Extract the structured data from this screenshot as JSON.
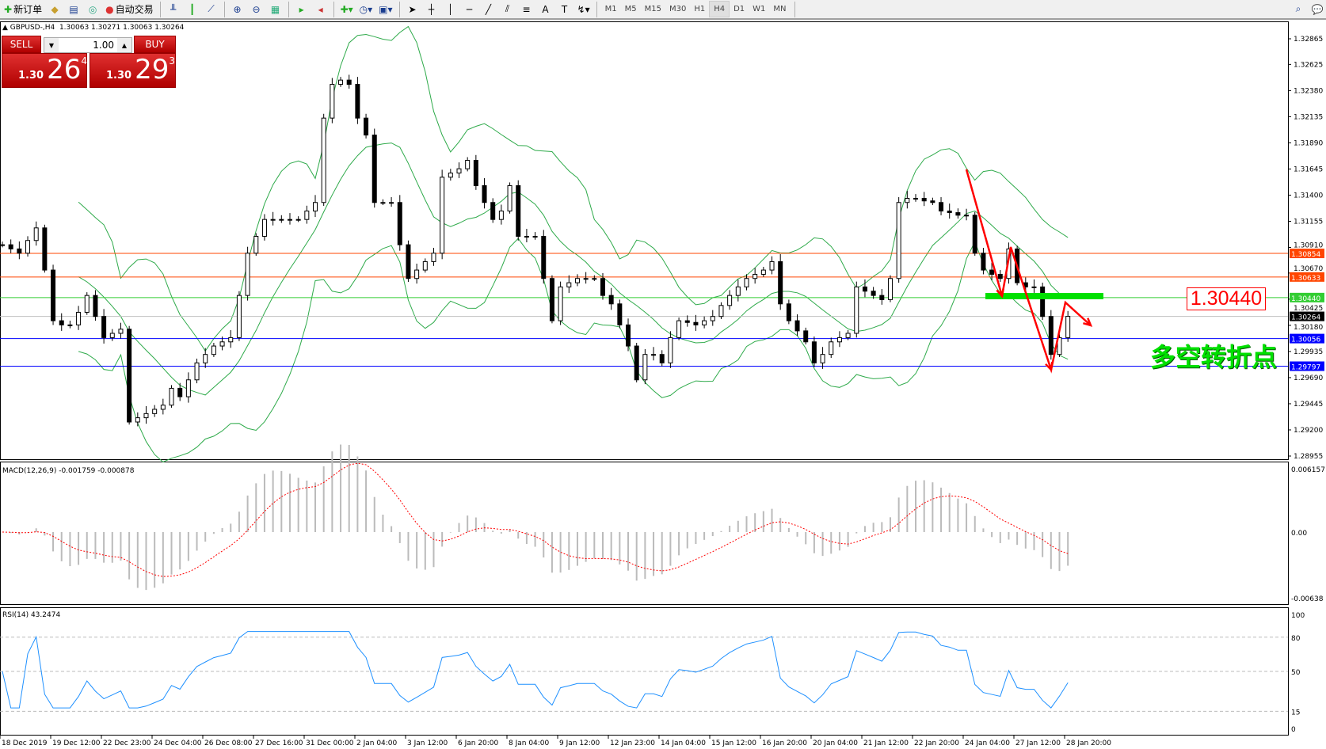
{
  "toolbar": {
    "new_order": "新订单",
    "auto_trading": "自动交易",
    "timeframes": [
      "M1",
      "M5",
      "M15",
      "M30",
      "H1",
      "H4",
      "D1",
      "W1",
      "MN"
    ],
    "active_timeframe": "H4"
  },
  "header": {
    "title": "GBPUSD-,H4",
    "ohlc": "1.30063 1.30271 1.30063 1.30264"
  },
  "one_click": {
    "sell_label": "SELL",
    "buy_label": "BUY",
    "lot": "1.00",
    "sell_prefix": "1.30",
    "sell_big": "26",
    "sell_sup": "4",
    "buy_prefix": "1.30",
    "buy_big": "29",
    "buy_sup": "3"
  },
  "annotations": {
    "level_label": "1.30440",
    "chinese_text": "多空转折点",
    "arrow_color": "#ff0000",
    "zone_color": "#00e000"
  },
  "chart_data": {
    "type": "candlestick",
    "symbol": "GBPUSD-",
    "timeframe": "H4",
    "price_axis": {
      "ylim": [
        1.28955,
        1.32865
      ],
      "ticks": [
        "1.32865",
        "1.32625",
        "1.32380",
        "1.32135",
        "1.31890",
        "1.31645",
        "1.31400",
        "1.31155",
        "1.30910",
        "1.30670",
        "1.30425",
        "1.30180",
        "1.29935",
        "1.29690",
        "1.29445",
        "1.29200",
        "1.28955"
      ]
    },
    "closes": [
      1.30935,
      1.30896,
      1.30856,
      1.30975,
      1.31093,
      1.30698,
      1.30223,
      1.30184,
      1.30184,
      1.30302,
      1.3046,
      1.30263,
      1.30065,
      1.30105,
      1.30144,
      1.29274,
      1.29314,
      1.29353,
      1.29393,
      1.29432,
      1.2959,
      1.29511,
      1.29669,
      1.29828,
      1.29907,
      1.29986,
      1.30025,
      1.30065,
      1.3046,
      1.30856,
      1.31014,
      1.31172,
      1.31172,
      1.31172,
      1.31172,
      1.31172,
      1.31251,
      1.31331,
      1.32122,
      1.32438,
      1.32478,
      1.32438,
      1.32122,
      1.31963,
      1.31331,
      1.31331,
      1.31331,
      1.30935,
      1.30619,
      1.30698,
      1.30777,
      1.30856,
      1.31568,
      1.31607,
      1.31647,
      1.31726,
      1.31489,
      1.31331,
      1.31172,
      1.31251,
      1.31489,
      1.31014,
      1.31014,
      1.31014,
      1.30619,
      1.30223,
      1.3054,
      1.30579,
      1.30619,
      1.30619,
      1.30619,
      1.3046,
      1.30381,
      1.30184,
      1.29986,
      1.29669,
      1.29907,
      1.29907,
      1.29828,
      1.30065,
      1.30223,
      1.30207,
      1.30184,
      1.30223,
      1.30263,
      1.30366,
      1.3046,
      1.3054,
      1.30619,
      1.30658,
      1.30698,
      1.30777,
      1.30381,
      1.30223,
      1.30128,
      1.30025,
      1.29828,
      1.29907,
      1.30025,
      1.30065,
      1.30105,
      1.3054,
      1.305,
      1.3046,
      1.30421,
      1.30619,
      1.31331,
      1.3137,
      1.3137,
      1.31346,
      1.31331,
      1.31251,
      1.31236,
      1.31212,
      1.31212,
      1.30856,
      1.30698,
      1.30658,
      1.30619,
      1.30896,
      1.30579,
      1.3054,
      1.3054,
      1.30263,
      1.29907,
      1.30065,
      1.30264
    ],
    "hlines": [
      {
        "price": 1.30854,
        "label": "1.30854",
        "color": "#ff4500"
      },
      {
        "price": 1.30633,
        "label": "1.30633",
        "color": "#ff4500"
      },
      {
        "price": 1.3044,
        "label": "1.30440",
        "color": "#32cd32"
      },
      {
        "price": 1.30264,
        "label": "1.30264",
        "color": "#000000",
        "line": "#c0c0c0"
      },
      {
        "price": 1.30056,
        "label": "1.30056",
        "color": "#0000ff"
      },
      {
        "price": 1.29797,
        "label": "1.29797",
        "color": "#0000ff"
      }
    ],
    "indicator_band_color": "#2eaa4a",
    "macd": {
      "label": "MACD(12,26,9) -0.001759 -0.000878",
      "ylim": [
        -0.00638,
        0.006157
      ],
      "ticks": [
        "0.006157",
        "0.00",
        "-0.00638"
      ]
    },
    "rsi": {
      "label": "RSI(14) 43.2474",
      "ylim": [
        0,
        100
      ],
      "ticks": [
        "100",
        "80",
        "50",
        "15",
        "0"
      ],
      "levels": [
        80,
        50,
        15
      ],
      "color": "#1e90ff"
    },
    "time_labels": [
      "18 Dec 2019",
      "19 Dec 12:00",
      "22 Dec 23:00",
      "24 Dec 04:00",
      "26 Dec 08:00",
      "27 Dec 16:00",
      "31 Dec 00:00",
      "2 Jan 04:00",
      "3 Jan 12:00",
      "6 Jan 20:00",
      "8 Jan 04:00",
      "9 Jan 12:00",
      "12 Jan 23:00",
      "14 Jan 04:00",
      "15 Jan 12:00",
      "16 Jan 20:00",
      "20 Jan 04:00",
      "21 Jan 12:00",
      "22 Jan 20:00",
      "24 Jan 04:00",
      "27 Jan 12:00",
      "28 Jan 20:00"
    ]
  }
}
